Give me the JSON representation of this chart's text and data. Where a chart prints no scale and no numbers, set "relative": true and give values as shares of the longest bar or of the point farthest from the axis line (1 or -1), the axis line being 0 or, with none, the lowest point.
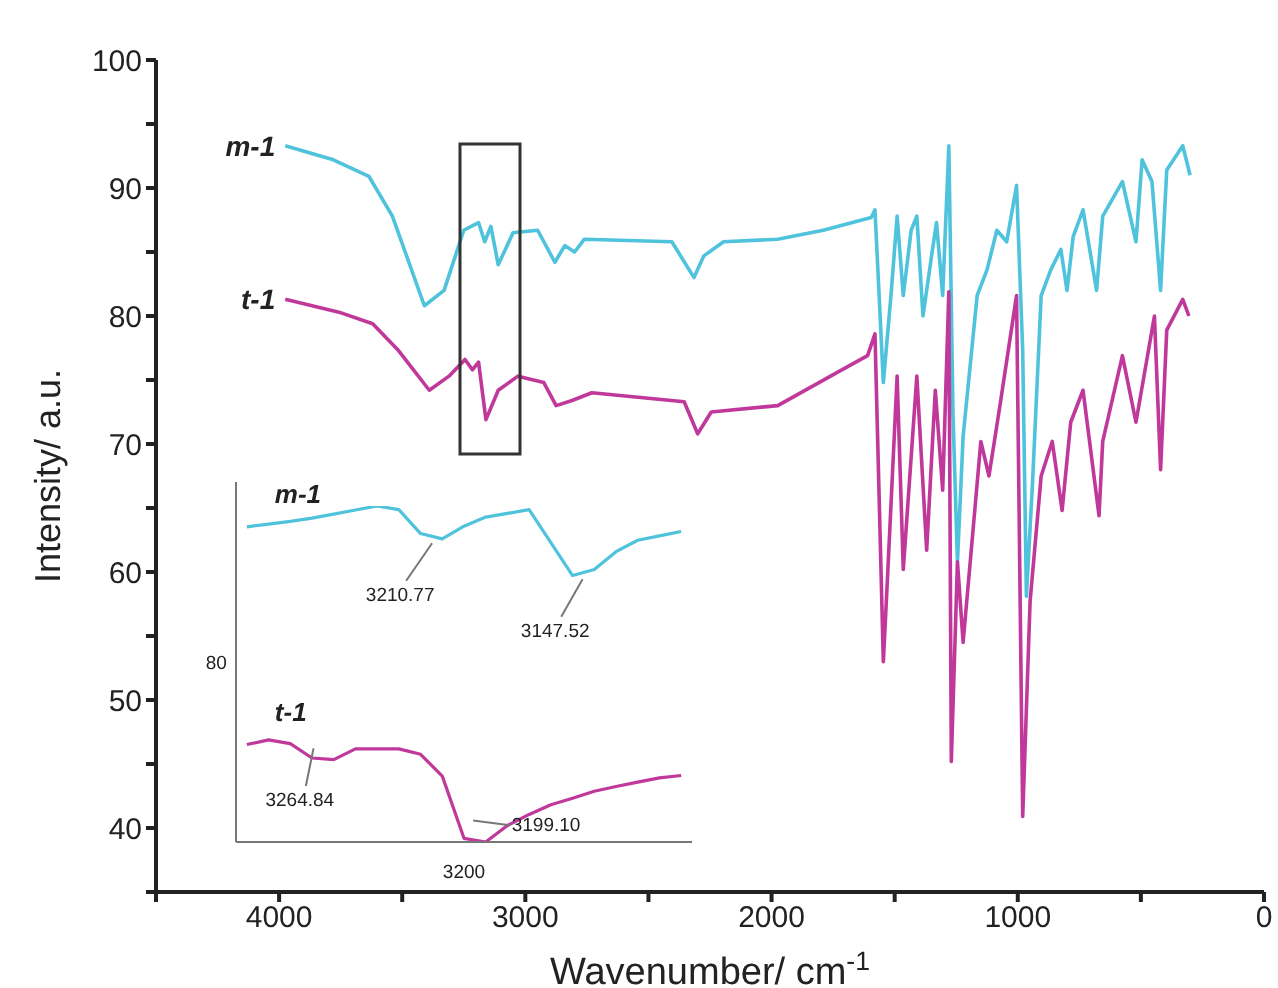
{
  "chart_data": [
    {
      "type": "line",
      "xlabel": "Wavenumber/ cm$^{-1}$",
      "ylabel": "Intensity/ a.u.",
      "xlim": [
        4500,
        0
      ],
      "xticks": [
        {
          "value": 4500,
          "label": null
        },
        4000,
        {
          "value": 3500,
          "label": null
        },
        3000,
        {
          "value": 2500,
          "label": null
        },
        2000,
        {
          "value": 1500,
          "label": null
        },
        1000,
        {
          "value": 500,
          "label": null
        },
        0
      ],
      "ylim": [
        35,
        100
      ],
      "yticks": [
        {
          "value": 35,
          "label": null
        },
        40,
        {
          "value": 45,
          "label": null
        },
        50,
        {
          "value": 55,
          "label": null
        },
        60,
        {
          "value": 65,
          "label": null
        },
        70,
        {
          "value": 75,
          "label": null
        },
        80,
        {
          "value": 85,
          "label": null
        },
        90,
        {
          "value": 95,
          "label": null
        },
        100
      ],
      "series": [
        {
          "name": "m-1",
          "color": "#4fc3dc",
          "x": [
            3975,
            3780,
            3635,
            3540,
            3410,
            3330,
            3250,
            3190,
            3165,
            3140,
            3110,
            3050,
            2950,
            2880,
            2840,
            2800,
            2760,
            2405,
            2315,
            2275,
            2195,
            1975,
            1790,
            1595,
            1580,
            1546,
            1515,
            1490,
            1465,
            1433,
            1410,
            1385,
            1350,
            1330,
            1305,
            1280,
            1263,
            1245,
            1222,
            1165,
            1125,
            1085,
            1045,
            1005,
            980,
            965,
            940,
            905,
            866,
            825,
            800,
            775,
            735,
            680,
            655,
            575,
            520,
            495,
            455,
            420,
            395,
            330,
            300
          ],
          "values": [
            93.3,
            92.2,
            90.9,
            87.8,
            80.8,
            82,
            86.7,
            87.3,
            85.8,
            87,
            84,
            86.5,
            86.7,
            84.2,
            85.5,
            85,
            86,
            85.8,
            83,
            84.7,
            85.8,
            86,
            86.7,
            87.7,
            88.3,
            74.8,
            81.6,
            87.8,
            81.6,
            86.7,
            87.8,
            80,
            84.7,
            87.3,
            81.6,
            93.3,
            72.2,
            60.8,
            70.6,
            81.6,
            83.6,
            86.7,
            85.8,
            90.2,
            77.3,
            58.1,
            67,
            81.6,
            83.6,
            85.2,
            82,
            86.2,
            88.3,
            82,
            87.8,
            90.5,
            85.8,
            92.2,
            90.5,
            82,
            91.4,
            93.3,
            91
          ]
        },
        {
          "name": "t-1",
          "color": "#c0399a",
          "x": [
            3975,
            3757,
            3620,
            3515,
            3390,
            3310,
            3245,
            3215,
            3190,
            3160,
            3110,
            3030,
            2925,
            2875,
            2810,
            2730,
            2355,
            2300,
            2245,
            1975,
            1733,
            1610,
            1580,
            1546,
            1530,
            1490,
            1465,
            1410,
            1370,
            1335,
            1305,
            1280,
            1270,
            1245,
            1222,
            1150,
            1117,
            1070,
            1005,
            980,
            950,
            905,
            860,
            820,
            785,
            735,
            670,
            655,
            575,
            520,
            445,
            420,
            395,
            330,
            305
          ],
          "values": [
            81.3,
            80.3,
            79.4,
            77.3,
            74.2,
            75.3,
            76.6,
            75.8,
            76.4,
            71.9,
            74.2,
            75.3,
            74.8,
            73,
            73.4,
            74,
            73.3,
            70.8,
            72.5,
            73,
            75.6,
            76.9,
            78.6,
            53,
            59.2,
            75.3,
            60.2,
            75.3,
            61.7,
            74.2,
            66.4,
            81.9,
            45.2,
            60.8,
            54.5,
            70.2,
            67.5,
            73.3,
            81.6,
            40.9,
            57.7,
            67.5,
            70.2,
            64.8,
            71.7,
            74.2,
            64.4,
            70.2,
            76.9,
            71.7,
            80,
            68,
            78.9,
            81.3,
            80
          ]
        }
      ]
    },
    {
      "type": "line",
      "relative": true,
      "categories": [
        null,
        null,
        null,
        null,
        null,
        null,
        null,
        null,
        null,
        null,
        null,
        null,
        null,
        null,
        null,
        null,
        null,
        null,
        null,
        null,
        null
      ],
      "series": [
        {
          "name": "m-1",
          "color": "#4fc3dc",
          "values": [
            0.938,
            0.946,
            0.954,
            0.964,
            0.976,
            0.988,
            1,
            0.989,
            0.918,
            0.902,
            0.94,
            0.967,
            0.978,
            0.989,
            0.891,
            0.793,
            0.811,
            0.864,
            0.898,
            0.911,
            0.924
          ]
        },
        {
          "name": "t-1",
          "color": "#c0399a",
          "values": [
            0.29,
            0.304,
            0.293,
            0.25,
            0.245,
            0.277,
            0.277,
            0.277,
            0.261,
            0.196,
            0.011,
            0,
            0.049,
            0.082,
            0.111,
            0.13,
            0.151,
            0.165,
            0.178,
            0.191,
            0.198
          ]
        }
      ],
      "annotations": [
        "80",
        "3200",
        "3210.77",
        "3147.52",
        "3264.84",
        "3199.10"
      ]
    }
  ]
}
